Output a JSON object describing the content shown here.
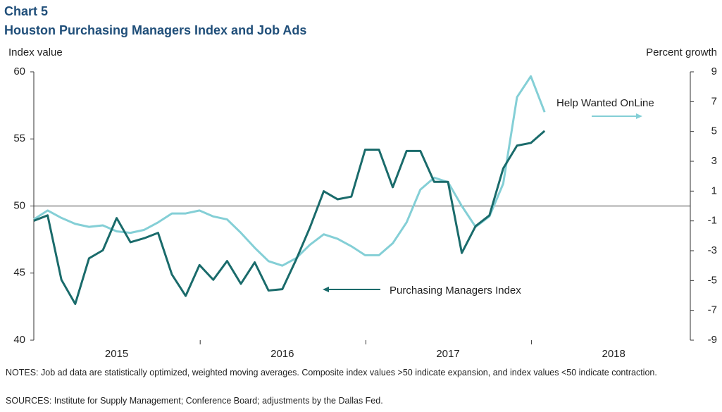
{
  "chart_data": {
    "type": "line",
    "chart_number": "Chart 5",
    "title": "Houston Purchasing Managers Index and Job Ads",
    "ylabel": "Index value",
    "y2label": "Percent growth",
    "categories": [
      null,
      null,
      null,
      null,
      null,
      null,
      "2015",
      null,
      null,
      null,
      null,
      null,
      null,
      null,
      null,
      null,
      null,
      null,
      "2016",
      null,
      null,
      null,
      null,
      null,
      null,
      null,
      null,
      null,
      null,
      null,
      "2017",
      null,
      null,
      null,
      null,
      null,
      null,
      null,
      null,
      null,
      null,
      null,
      "2018",
      null,
      null,
      null,
      null,
      null
    ],
    "series": [
      {
        "name": "Purchasing Managers Index",
        "color": "#1a6b6b",
        "axis": "y",
        "values": [
          48.9,
          49.3,
          44.5,
          42.7,
          46.1,
          46.7,
          49.1,
          47.3,
          47.6,
          48.0,
          44.9,
          43.3,
          45.6,
          44.5,
          45.9,
          44.2,
          45.8,
          43.7,
          43.8,
          46.0,
          48.4,
          51.1,
          50.5,
          50.7,
          54.2,
          54.2,
          51.4,
          54.1,
          54.1,
          51.8,
          51.8,
          46.5,
          48.5,
          49.3,
          52.8,
          54.5,
          54.7,
          55.6,
          null,
          null,
          null,
          null,
          null,
          null,
          null,
          null,
          null,
          null
        ]
      },
      {
        "name": "Help Wanted OnLine",
        "color": "#84cfd6",
        "axis": "y2",
        "values": [
          -0.9,
          -0.3,
          -0.8,
          -1.2,
          -1.4,
          -1.3,
          -1.7,
          -1.8,
          -1.6,
          -1.1,
          -0.5,
          -0.5,
          -0.3,
          -0.7,
          -0.9,
          -1.8,
          -2.8,
          -3.7,
          -4.0,
          -3.5,
          -2.6,
          -1.9,
          -2.2,
          -2.7,
          -3.3,
          -3.3,
          -2.5,
          -1.1,
          1.1,
          1.9,
          1.6,
          0,
          -1.4,
          -0.7,
          1.5,
          7.3,
          8.7,
          6.3,
          null,
          null,
          null,
          null,
          null,
          null,
          null,
          null,
          null,
          null
        ]
      }
    ],
    "ylim": [
      40,
      60
    ],
    "yticks": [
      40,
      45,
      50,
      55,
      60
    ],
    "y2lim": [
      -9,
      9
    ],
    "y2ticks": [
      -9,
      -7,
      -5,
      -3,
      -1,
      1,
      3,
      5,
      7,
      9
    ],
    "reference_line": 50,
    "notes": "NOTES: Job ad data are statistically optimized, weighted moving averages. Composite index values >50 indicate expansion, and index values <50 indicate contraction.",
    "sources": "SOURCES: Institute for Supply Management; Conference Board; adjustments by the Dallas Fed."
  }
}
